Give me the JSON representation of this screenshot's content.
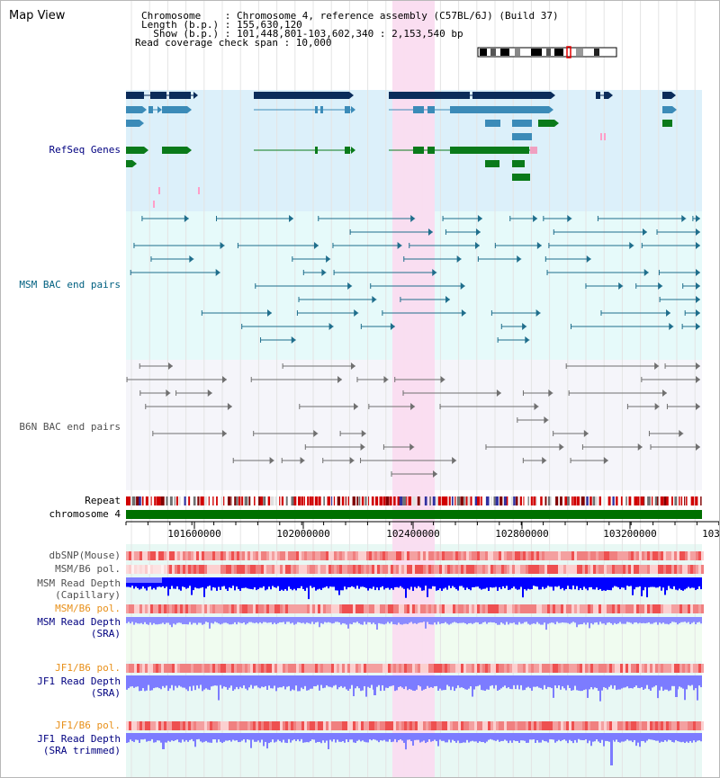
{
  "view_title": "Map View",
  "info": {
    "line1": "Chromosome    : Chromosome 4, reference assembly (C57BL/6J) (Build 37)",
    "line2": "Length (b.p.) : 155,630,120",
    "line3": "  Show (b.p.) : 101,448,801-103,602,340 : 2,153,540 bp",
    "line4": "Read coverage check span : 10,000"
  },
  "tracks": {
    "refseq": "RefSeq Genes",
    "msm_bac": "MSM BAC end pairs",
    "b6n_bac": "B6N BAC end pairs",
    "repeat": "Repeat",
    "chromosome": "chromosome 4",
    "dbsnp": "dbSNP(Mouse)",
    "msm_b6_pol": "MSM/B6 pol.",
    "msm_depth_cap_1": "MSM Read Depth",
    "msm_depth_cap_2": "(Capillary)",
    "msm_b6_pol2": "MSM/B6 pol.",
    "msm_depth_sra_1": "MSM Read Depth",
    "msm_depth_sra_2": "(SRA)",
    "jf1_pol": "JF1/B6 pol.",
    "jf1_depth_sra_1": "JF1 Read Depth",
    "jf1_depth_sra_2": "(SRA)",
    "jf1_pol2": "JF1/B6 pol.",
    "jf1_depth_trim_1": "JF1 Read Depth",
    "jf1_depth_trim_2": "(SRA trimmed)"
  },
  "axis": {
    "ticks": [
      "101600000",
      "102000000",
      "102400000",
      "102800000",
      "103200000",
      "103"
    ]
  },
  "colors": {
    "refseq_bg": "#dcf0fa",
    "msm_bg": "#e6fafa",
    "b6n_bg": "#f5f5fa",
    "highlight": "#fadcf0",
    "refseq_label": "#000080",
    "msm_label": "#006080",
    "b6n_label": "#505050",
    "orange_label": "#e8901a",
    "blue_label": "#000080",
    "chromosome": "#007000",
    "msm_feature": "#1f6e8c",
    "b6n_feature": "#707070",
    "depth_blue": "#0000ff",
    "depth_light": "#7c7cff"
  }
}
